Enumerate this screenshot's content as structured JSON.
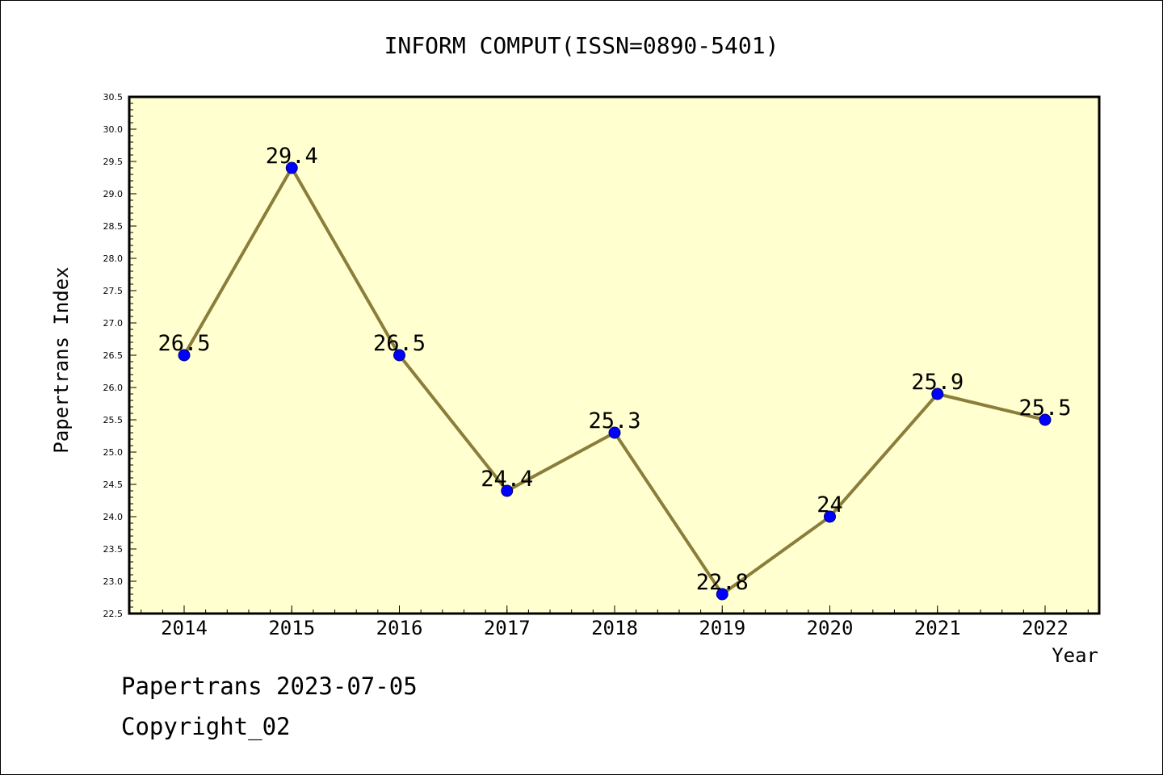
{
  "chart_data": {
    "type": "line",
    "title": "INFORM COMPUT(ISSN=0890-5401)",
    "xlabel": "Year",
    "ylabel": "Papertrans Index",
    "categories": [
      "2014",
      "2015",
      "2016",
      "2017",
      "2018",
      "2019",
      "2020",
      "2021",
      "2022"
    ],
    "series": [
      {
        "values": [
          26.5,
          29.4,
          26.5,
          24.4,
          25.3,
          22.8,
          24,
          25.9,
          25.5
        ],
        "labels": [
          "26.5",
          "29.4",
          "26.5",
          "24.4",
          "25.3",
          "22.8",
          "24",
          "25.9",
          "25.5"
        ]
      }
    ],
    "ylim": [
      22.5,
      30.5
    ],
    "y_ticks": [
      "22.5",
      "23.0",
      "23.5",
      "24.0",
      "24.5",
      "25.0",
      "25.5",
      "26.0",
      "26.5",
      "27.0",
      "27.5",
      "28.0",
      "28.5",
      "29.0",
      "29.5",
      "30.0",
      "30.5"
    ],
    "grid": false,
    "colors": {
      "plot_background": "#ffffd0",
      "line": "#8b7d3a",
      "marker_fill": "#0000ff",
      "marker_stroke": "#00007a"
    }
  },
  "footer": {
    "line1": "Papertrans 2023-07-05",
    "line2": "Copyright_02"
  }
}
